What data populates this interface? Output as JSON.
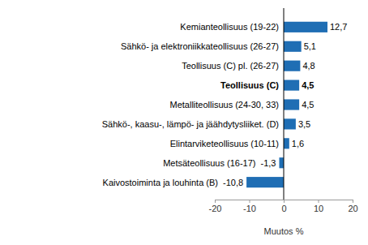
{
  "chart_data": {
    "type": "bar",
    "orientation": "horizontal",
    "categories": [
      "Kemianteollisuus (19-22)",
      "Sähkö- ja elektroniikkateollisuus (26-27)",
      "Teollisuus (C) pl. (26-27)",
      "Teollisuus (C)",
      "Metalliteollisuus (24-30, 33)",
      "Sähkö-, kaasu-, lämpö- ja jäähdytysliiket. (D)",
      "Elintarviketeollisuus (10-11)",
      "Metsäteollisuus (16-17)",
      "Kaivostoiminta  ja louhinta (B)"
    ],
    "values": [
      12.7,
      5.1,
      4.8,
      4.5,
      4.5,
      3.5,
      1.6,
      -1.3,
      -10.8
    ],
    "value_labels": [
      "12,7",
      "5,1",
      "4,8",
      "4,5",
      "4,5",
      "3,5",
      "1,6",
      "-1,3",
      "-10,8"
    ],
    "data_labels": true,
    "color": "#1f6eb4",
    "x_label": "Muutos %",
    "xlim": [
      -20,
      20
    ],
    "xticks": [
      -20,
      -10,
      0,
      10,
      20
    ],
    "grid": false
  }
}
